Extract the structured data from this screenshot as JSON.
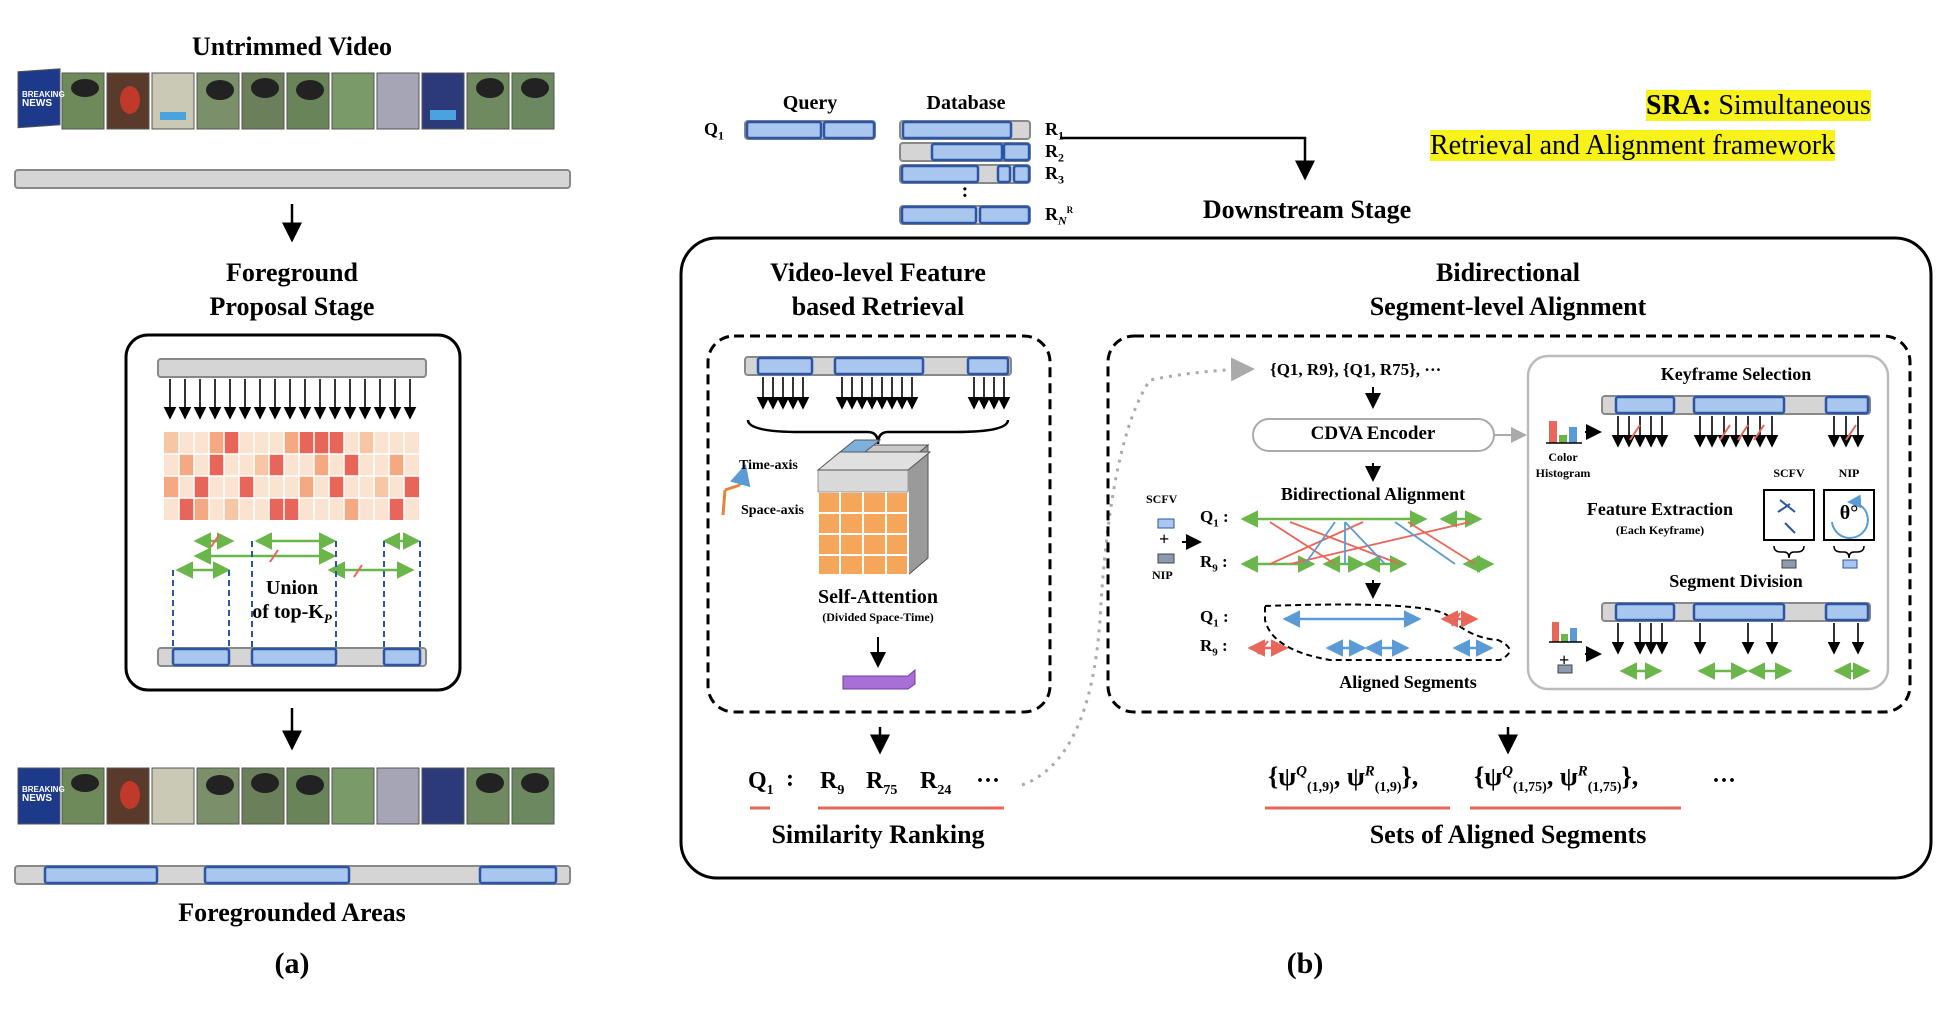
{
  "panel_a": {
    "title": "Untrimmed Video",
    "stage_line1": "Foreground",
    "stage_line2": "Proposal Stage",
    "union_line1": "Union",
    "union_line2": "of top-K",
    "union_sub": "P",
    "bottom_title": "Foregrounded Areas",
    "caption": "(a)",
    "frame_badge_line1": "BREAKING",
    "frame_badge_line2": "NEWS"
  },
  "panel_b": {
    "caption": "(b)",
    "query_header": "Query",
    "database_header": "Database",
    "q1": "Q",
    "q1_sub": "1",
    "r_labels": [
      {
        "t": "R",
        "s": "1"
      },
      {
        "t": "R",
        "s": "2"
      },
      {
        "t": "R",
        "s": "3"
      }
    ],
    "dots_vertical": ":",
    "rn_label": "R",
    "rn_sub": "N",
    "rn_sup": "R",
    "downstream": "Downstream Stage",
    "sra_bold": "SRA:",
    "sra_line1": " Simultaneous",
    "sra_line2": "Retrieval and Alignment framework",
    "retrieval_title_line1": "Video-level Feature",
    "retrieval_title_line2": "based Retrieval",
    "time_axis": "Time-axis",
    "space_axis": "Space-axis",
    "self_attention": "Self-Attention",
    "self_attention_sub": "(Divided Space-Time)",
    "ranking_query": "Q",
    "ranking_query_sub": "1",
    "ranking_colon": ":",
    "ranking_items": [
      {
        "t": "R",
        "s": "9"
      },
      {
        "t": "R",
        "s": "75"
      },
      {
        "t": "R",
        "s": "24"
      }
    ],
    "ranking_ellipsis": "···",
    "similarity_ranking": "Similarity Ranking",
    "alignment_title_line1": "Bidirectional",
    "alignment_title_line2": "Segment-level Alignment",
    "pairs": "{Q1, R9}, {Q1, R75}, ···",
    "cdva": "CDVA Encoder",
    "scfv": "SCFV",
    "plus": "+",
    "nip": "NIP",
    "bidirectional_alignment": "Bidirectional Alignment",
    "q1_row": "Q",
    "q1_row_sub": "1",
    "r9_row": "R",
    "r9_row_sub": "9",
    "row_colon": " :",
    "aligned_segments": "Aligned Segments",
    "keyframe_selection": "Keyframe Selection",
    "color_histogram_line1": "Color",
    "color_histogram_line2": "Histogram",
    "feature_extraction": "Feature Extraction",
    "each_keyframe": "(Each Keyframe)",
    "scfv_small": "SCFV",
    "nip_small": "NIP",
    "theta": "θ°",
    "segment_division": "Segment Division",
    "sets_aligned": "Sets of Aligned Segments",
    "psi_set_1": "{ψ",
    "psi_set_1_sup": "Q",
    "psi_set_1_sub": "(1,9)",
    "psi_set_1b": ", ψ",
    "psi_set_1b_sup": "R",
    "psi_set_1b_sub": "(1,9)",
    "psi_set_1_close": "},",
    "psi_set_2": "{ψ",
    "psi_set_2_sup": "Q",
    "psi_set_2_sub": "(1,75)",
    "psi_set_2b": ", ψ",
    "psi_set_2b_sup": "R",
    "psi_set_2b_sub": "(1,75)",
    "psi_set_2_close": "},",
    "psi_ellipsis": "···"
  },
  "colors": {
    "segment_blue": "#a9c7ee",
    "segment_border": "#2c55a6",
    "bar_gray": "#d5d5d5",
    "arrow_green": "#6ab64a",
    "line_red": "#e8665a",
    "line_blue": "#5a9bd5",
    "cube_orange": "#f5a65b",
    "feature_purple": "#a86fd6",
    "highlight_yellow": "#f7f21a"
  }
}
